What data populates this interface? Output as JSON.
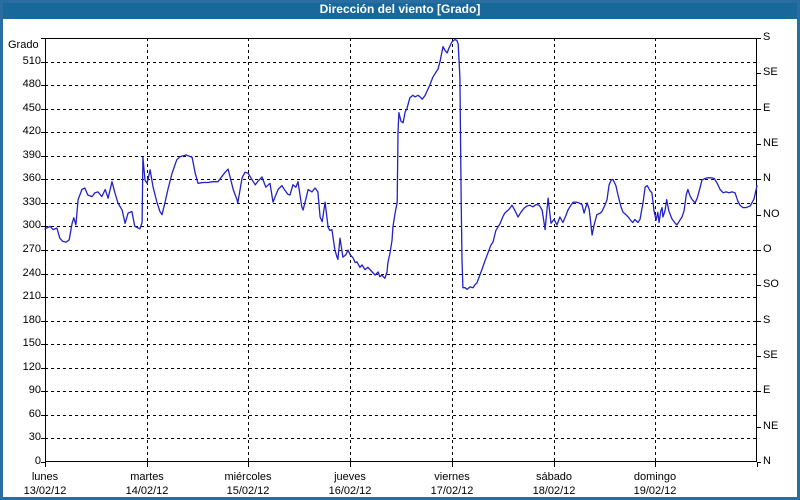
{
  "window": {
    "title": "Dirección del viento [Grado]"
  },
  "colors": {
    "titlebar_bg": "#19689c",
    "titlebar_text": "#ffffff",
    "panel_border": "#2a6da0",
    "plot_bg": "#ffffff",
    "frame": "#000000",
    "grid": "#000000",
    "series_line": "#2222c8",
    "label_text": "#000000"
  },
  "chart_data": {
    "type": "line",
    "title": "Dirección del viento [Grado]",
    "ylabel": "Grado",
    "ylim": [
      0,
      540
    ],
    "xlim_hours": [
      0,
      168
    ],
    "grid": "dashed",
    "legend_position": "none",
    "y_left_ticks": [
      0,
      30,
      60,
      90,
      120,
      150,
      180,
      210,
      240,
      270,
      300,
      330,
      360,
      390,
      420,
      450,
      480,
      510
    ],
    "y_right_ticks": [
      {
        "value": 540,
        "label": "S"
      },
      {
        "value": 495,
        "label": "SE"
      },
      {
        "value": 450,
        "label": "E"
      },
      {
        "value": 405,
        "label": "NE"
      },
      {
        "value": 360,
        "label": "N"
      },
      {
        "value": 315,
        "label": "NO"
      },
      {
        "value": 270,
        "label": "O"
      },
      {
        "value": 225,
        "label": "SO"
      },
      {
        "value": 180,
        "label": "S"
      },
      {
        "value": 135,
        "label": "SE"
      },
      {
        "value": 90,
        "label": "E"
      },
      {
        "value": 45,
        "label": "NE"
      },
      {
        "value": 0,
        "label": "N"
      }
    ],
    "x_days": [
      {
        "name": "lunes",
        "date": "13/02/12"
      },
      {
        "name": "martes",
        "date": "14/02/12"
      },
      {
        "name": "miércoles",
        "date": "15/02/12"
      },
      {
        "name": "jueves",
        "date": "16/02/12"
      },
      {
        "name": "viernes",
        "date": "17/02/12"
      },
      {
        "name": "sábado",
        "date": "18/02/12"
      },
      {
        "name": "domingo",
        "date": "19/02/12"
      }
    ],
    "series": [
      {
        "name": "Dirección del viento",
        "unit": "Grado",
        "points": [
          [
            0,
            297
          ],
          [
            1.2,
            300
          ],
          [
            1.9,
            296
          ],
          [
            2.8,
            298
          ],
          [
            3.5,
            285
          ],
          [
            4.2,
            281
          ],
          [
            5,
            280
          ],
          [
            5.7,
            283
          ],
          [
            6.4,
            304
          ],
          [
            6.8,
            311
          ],
          [
            7.3,
            302
          ],
          [
            7.8,
            334
          ],
          [
            8.7,
            347
          ],
          [
            9.4,
            349
          ],
          [
            10.1,
            340
          ],
          [
            11.1,
            338
          ],
          [
            11.8,
            343
          ],
          [
            12.5,
            344
          ],
          [
            13.4,
            338
          ],
          [
            14.2,
            347
          ],
          [
            14.9,
            336
          ],
          [
            15.8,
            357
          ],
          [
            16.5,
            343
          ],
          [
            17.2,
            330
          ],
          [
            18.2,
            321
          ],
          [
            18.9,
            304
          ],
          [
            19.6,
            317
          ],
          [
            20.5,
            319
          ],
          [
            21.2,
            300
          ],
          [
            22.4,
            297
          ],
          [
            22.9,
            305
          ],
          [
            23.1,
            388
          ],
          [
            23.6,
            359
          ],
          [
            24.1,
            355
          ],
          [
            24.8,
            372
          ],
          [
            25.5,
            350
          ],
          [
            26.4,
            331
          ],
          [
            27.1,
            319
          ],
          [
            27.6,
            315
          ],
          [
            28.3,
            330
          ],
          [
            29,
            347
          ],
          [
            30,
            368
          ],
          [
            31.1,
            385
          ],
          [
            31.9,
            389
          ],
          [
            33.3,
            391
          ],
          [
            34.7,
            388
          ],
          [
            35.4,
            369
          ],
          [
            36.1,
            355
          ],
          [
            37.3,
            356
          ],
          [
            38.5,
            356
          ],
          [
            39.6,
            357
          ],
          [
            40.8,
            357
          ],
          [
            42.5,
            369
          ],
          [
            43.2,
            373
          ],
          [
            44.4,
            347
          ],
          [
            45.3,
            334
          ],
          [
            45.5,
            330
          ],
          [
            46.5,
            362
          ],
          [
            47.2,
            369
          ],
          [
            47.9,
            368
          ],
          [
            48.8,
            360
          ],
          [
            49.6,
            353
          ],
          [
            50.3,
            358
          ],
          [
            51.2,
            363
          ],
          [
            52.1,
            350
          ],
          [
            53.1,
            355
          ],
          [
            53.8,
            331
          ],
          [
            55,
            347
          ],
          [
            55.9,
            352
          ],
          [
            56.6,
            346
          ],
          [
            57.3,
            341
          ],
          [
            57.8,
            340
          ],
          [
            58.5,
            353
          ],
          [
            59.2,
            350
          ],
          [
            59.7,
            357
          ],
          [
            60.6,
            325
          ],
          [
            60.9,
            321
          ],
          [
            62.1,
            347
          ],
          [
            63,
            344
          ],
          [
            63.7,
            349
          ],
          [
            64.4,
            344
          ],
          [
            64.9,
            312
          ],
          [
            65.4,
            306
          ],
          [
            66.1,
            331
          ],
          [
            66.8,
            299
          ],
          [
            67.2,
            295
          ],
          [
            67.7,
            296
          ],
          [
            68.4,
            270
          ],
          [
            68.9,
            261
          ],
          [
            69.1,
            258
          ],
          [
            69.6,
            285
          ],
          [
            70.3,
            261
          ],
          [
            71,
            264
          ],
          [
            71.5,
            270
          ],
          [
            72,
            264
          ],
          [
            72.7,
            260
          ],
          [
            73.2,
            254
          ],
          [
            73.6,
            255
          ],
          [
            74.3,
            248
          ],
          [
            74.8,
            251
          ],
          [
            75.5,
            245
          ],
          [
            76.2,
            248
          ],
          [
            77.2,
            242
          ],
          [
            77.9,
            238
          ],
          [
            78.6,
            242
          ],
          [
            79,
            236
          ],
          [
            79.5,
            238
          ],
          [
            80.2,
            234
          ],
          [
            80.7,
            242
          ],
          [
            80.9,
            254
          ],
          [
            81.4,
            266
          ],
          [
            81.9,
            283
          ],
          [
            82.1,
            299
          ],
          [
            82.6,
            317
          ],
          [
            83.1,
            331
          ],
          [
            83.3,
            420
          ],
          [
            83.5,
            445
          ],
          [
            84,
            434
          ],
          [
            84.5,
            432
          ],
          [
            85,
            446
          ],
          [
            85.4,
            450
          ],
          [
            86.1,
            464
          ],
          [
            86.8,
            467
          ],
          [
            87.3,
            465
          ],
          [
            88,
            467
          ],
          [
            88.5,
            465
          ],
          [
            89,
            462
          ],
          [
            89.7,
            467
          ],
          [
            90.1,
            472
          ],
          [
            90.8,
            480
          ],
          [
            91.5,
            490
          ],
          [
            92.3,
            497
          ],
          [
            92.7,
            500
          ],
          [
            93.2,
            510
          ],
          [
            93.9,
            529
          ],
          [
            94.4,
            524
          ],
          [
            94.9,
            521
          ],
          [
            95.3,
            527
          ],
          [
            96,
            535
          ],
          [
            96.7,
            538
          ],
          [
            97.2,
            537
          ],
          [
            97.5,
            532
          ],
          [
            97.9,
            490
          ],
          [
            98.2,
            330
          ],
          [
            98.4,
            257
          ],
          [
            98.6,
            222
          ],
          [
            99.1,
            222
          ],
          [
            99.6,
            220
          ],
          [
            100.3,
            223
          ],
          [
            101,
            222
          ],
          [
            101.5,
            226
          ],
          [
            101.9,
            228
          ],
          [
            102.6,
            238
          ],
          [
            103.1,
            245
          ],
          [
            103.8,
            256
          ],
          [
            104.5,
            266
          ],
          [
            105.2,
            276
          ],
          [
            105.7,
            280
          ],
          [
            106.4,
            295
          ],
          [
            107.4,
            304
          ],
          [
            108.1,
            313
          ],
          [
            108.5,
            317
          ],
          [
            109.5,
            322
          ],
          [
            110.2,
            327
          ],
          [
            110.9,
            320
          ],
          [
            111.6,
            312
          ],
          [
            112.3,
            318
          ],
          [
            113,
            323
          ],
          [
            113.7,
            326
          ],
          [
            114.4,
            327
          ],
          [
            115.1,
            325
          ],
          [
            115.9,
            328
          ],
          [
            116.6,
            327
          ],
          [
            117.3,
            321
          ],
          [
            118,
            296
          ],
          [
            118.7,
            336
          ],
          [
            119.4,
            304
          ],
          [
            120.1,
            309
          ],
          [
            120.8,
            302
          ],
          [
            121.5,
            312
          ],
          [
            122.2,
            305
          ],
          [
            122.9,
            314
          ],
          [
            123.4,
            321
          ],
          [
            124.1,
            327
          ],
          [
            124.6,
            331
          ],
          [
            125.3,
            331
          ],
          [
            126,
            330
          ],
          [
            126.7,
            328
          ],
          [
            127.2,
            317
          ],
          [
            127.9,
            330
          ],
          [
            128.4,
            322
          ],
          [
            129.1,
            289
          ],
          [
            129.5,
            300
          ],
          [
            130.2,
            315
          ],
          [
            131,
            317
          ],
          [
            131.4,
            319
          ],
          [
            132.1,
            327
          ],
          [
            132.6,
            334
          ],
          [
            133.1,
            353
          ],
          [
            133.6,
            359
          ],
          [
            134,
            360
          ],
          [
            134.7,
            352
          ],
          [
            135.2,
            340
          ],
          [
            135.9,
            325
          ],
          [
            136.4,
            318
          ],
          [
            137.1,
            315
          ],
          [
            137.6,
            312
          ],
          [
            138.3,
            307
          ],
          [
            138.7,
            305
          ],
          [
            139.2,
            309
          ],
          [
            139.9,
            305
          ],
          [
            140.4,
            309
          ],
          [
            141.1,
            330
          ],
          [
            141.6,
            350
          ],
          [
            142.1,
            352
          ],
          [
            142.8,
            345
          ],
          [
            143.2,
            343
          ],
          [
            143.7,
            320
          ],
          [
            144.2,
            308
          ],
          [
            144.6,
            318
          ],
          [
            144.9,
            305
          ],
          [
            145.3,
            320
          ],
          [
            145.6,
            324
          ],
          [
            145.8,
            312
          ],
          [
            146.3,
            320
          ],
          [
            146.7,
            334
          ],
          [
            147.2,
            320
          ],
          [
            147.9,
            310
          ],
          [
            148.7,
            304
          ],
          [
            149.1,
            302
          ],
          [
            149.8,
            308
          ],
          [
            150.3,
            312
          ],
          [
            150.8,
            320
          ],
          [
            151.3,
            340
          ],
          [
            151.7,
            347
          ],
          [
            152.2,
            339
          ],
          [
            152.7,
            334
          ],
          [
            153.4,
            330
          ],
          [
            153.9,
            336
          ],
          [
            154.6,
            350
          ],
          [
            155,
            359
          ],
          [
            155.7,
            361
          ],
          [
            156.4,
            362
          ],
          [
            157.2,
            362
          ],
          [
            157.9,
            361
          ],
          [
            158.6,
            355
          ],
          [
            159.3,
            347
          ],
          [
            160,
            343
          ],
          [
            160.7,
            344
          ],
          [
            161.4,
            343
          ],
          [
            162.1,
            344
          ],
          [
            162.8,
            343
          ],
          [
            163.5,
            332
          ],
          [
            164,
            327
          ],
          [
            164.7,
            324
          ],
          [
            165.4,
            324
          ],
          [
            165.9,
            325
          ],
          [
            166.4,
            326
          ],
          [
            166.8,
            330
          ],
          [
            167.3,
            335
          ],
          [
            167.5,
            340
          ],
          [
            168,
            352
          ]
        ]
      }
    ]
  }
}
